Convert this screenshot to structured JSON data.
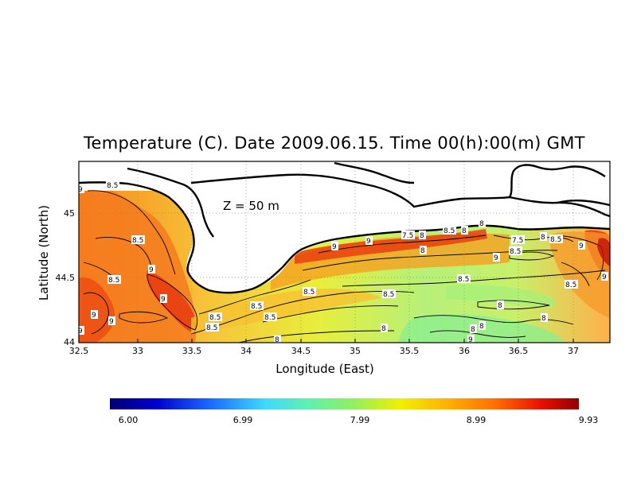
{
  "title": "Temperature (C). Date 2009.06.15. Time 00(h):00(m) GMT",
  "depth_label": "Z  =  50  m",
  "x_axis_label": "Longitude (East)",
  "y_axis_label": "Latitude (North)",
  "x_ticks": [
    "32.5",
    "33",
    "33.5",
    "34",
    "34.5",
    "35",
    "35.5",
    "36",
    "36.5",
    "37"
  ],
  "y_ticks": [
    "44",
    "44.5",
    "45"
  ],
  "contour_labels": [
    {
      "text": "8.5"
    },
    {
      "text": "8.5"
    },
    {
      "text": "8.5"
    },
    {
      "text": "9"
    },
    {
      "text": "9"
    },
    {
      "text": "9"
    },
    {
      "text": "9"
    },
    {
      "text": "8.5"
    },
    {
      "text": "8.5"
    },
    {
      "text": "8.5"
    },
    {
      "text": "8.5"
    },
    {
      "text": "8.5"
    },
    {
      "text": "8"
    },
    {
      "text": "8"
    },
    {
      "text": "9"
    },
    {
      "text": "9"
    },
    {
      "text": "7.5"
    },
    {
      "text": "8"
    },
    {
      "text": "8.5"
    },
    {
      "text": "8"
    },
    {
      "text": "8.5"
    },
    {
      "text": "8"
    },
    {
      "text": "8.5"
    },
    {
      "text": "8"
    },
    {
      "text": "9"
    },
    {
      "text": "7.5"
    },
    {
      "text": "8.5"
    },
    {
      "text": "8"
    },
    {
      "text": "8.5"
    },
    {
      "text": "9"
    },
    {
      "text": "9"
    },
    {
      "text": "8"
    },
    {
      "text": "8.5"
    },
    {
      "text": "8"
    },
    {
      "text": "8"
    },
    {
      "text": "9"
    },
    {
      "text": "9"
    },
    {
      "text": "8"
    },
    {
      "text": "9"
    }
  ],
  "colorbar": {
    "tick_labels": [
      "6.00",
      "6.99",
      "7.99",
      "8.99",
      "9.93"
    ],
    "colors": [
      "#000070",
      "#0000d0",
      "#1c70ff",
      "#40d8ff",
      "#60f0b0",
      "#90f060",
      "#f0f000",
      "#ffb000",
      "#ff7000",
      "#e81000",
      "#900000"
    ]
  },
  "colors": {
    "land": "#ffffff",
    "coast": "#000000",
    "contour": "#000000",
    "grid": "#888888"
  }
}
